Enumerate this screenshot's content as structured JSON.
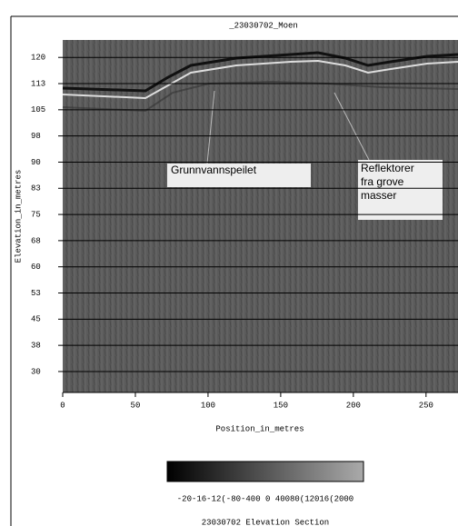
{
  "chart_data": {
    "type": "radargram",
    "title": "_23030702_Moen",
    "y_label": "Elevation_in_metres",
    "x_label": "Position_in_metres",
    "ylim": [
      24,
      125
    ],
    "yticks": [
      120,
      {
        "value": 112.5,
        "label": "113"
      },
      105,
      {
        "value": 97.5,
        "label": "98"
      },
      90,
      {
        "value": 82.5,
        "label": "83"
      },
      75,
      {
        "value": 67.5,
        "label": "68"
      },
      60,
      {
        "value": 52.5,
        "label": "53"
      },
      45,
      {
        "value": 37.5,
        "label": "38"
      },
      30
    ],
    "xlim": [
      0,
      272
    ],
    "xticks": [
      0,
      50,
      100,
      150,
      200,
      250
    ],
    "grid": true,
    "annotations": [
      {
        "text": "Grunnvannspeilet"
      },
      {
        "text": "Reflektorer\nfra grove\nmasser"
      }
    ],
    "colorbar_labels": "-20-16-12(-80-400 0 40080(12016(2000",
    "caption": "23030702 Elevation Section"
  }
}
